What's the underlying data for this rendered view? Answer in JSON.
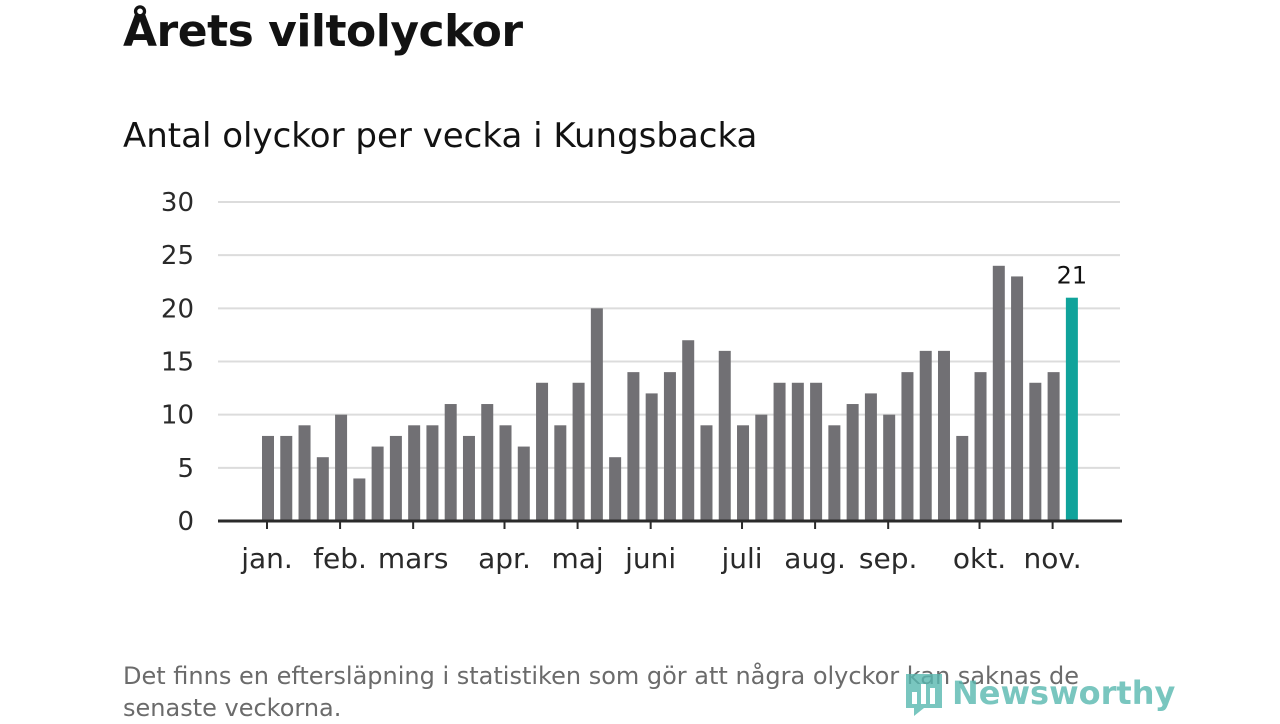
{
  "title": "Årets viltolyckor",
  "subtitle": "Antal olyckor per vecka i Kungsbacka",
  "footnote": "Det finns en eftersläpning i statistiken som gör att några olyckor kan saknas de senaste veckorna.",
  "logo": {
    "text": "Newsworthy",
    "icon": "bar-chart-icon"
  },
  "colors": {
    "bar": "#717074",
    "highlight": "#10a39b",
    "grid": "#dcdcdc",
    "axis": "#2a2a2a"
  },
  "chart_data": {
    "type": "bar",
    "title": "Antal olyckor per vecka i Kungsbacka",
    "xlabel": "",
    "ylabel": "",
    "ylim": [
      0,
      30
    ],
    "yticks": [
      0,
      5,
      10,
      15,
      20,
      25,
      30
    ],
    "grid": true,
    "values": [
      8,
      8,
      9,
      6,
      10,
      4,
      7,
      8,
      9,
      9,
      11,
      8,
      11,
      9,
      7,
      13,
      9,
      13,
      20,
      6,
      14,
      12,
      14,
      17,
      9,
      16,
      9,
      10,
      13,
      13,
      13,
      9,
      11,
      12,
      10,
      14,
      16,
      16,
      8,
      14,
      24,
      23,
      13,
      14,
      21
    ],
    "highlight_index": 44,
    "highlight_label": "21",
    "month_labels": [
      {
        "label": "jan.",
        "bar_index": 0
      },
      {
        "label": "feb.",
        "bar_index": 4
      },
      {
        "label": "mars",
        "bar_index": 8
      },
      {
        "label": "apr.",
        "bar_index": 13
      },
      {
        "label": "maj",
        "bar_index": 17
      },
      {
        "label": "juni",
        "bar_index": 21
      },
      {
        "label": "juli",
        "bar_index": 26
      },
      {
        "label": "aug.",
        "bar_index": 30
      },
      {
        "label": "sep.",
        "bar_index": 34
      },
      {
        "label": "okt.",
        "bar_index": 39
      },
      {
        "label": "nov.",
        "bar_index": 43
      }
    ]
  }
}
